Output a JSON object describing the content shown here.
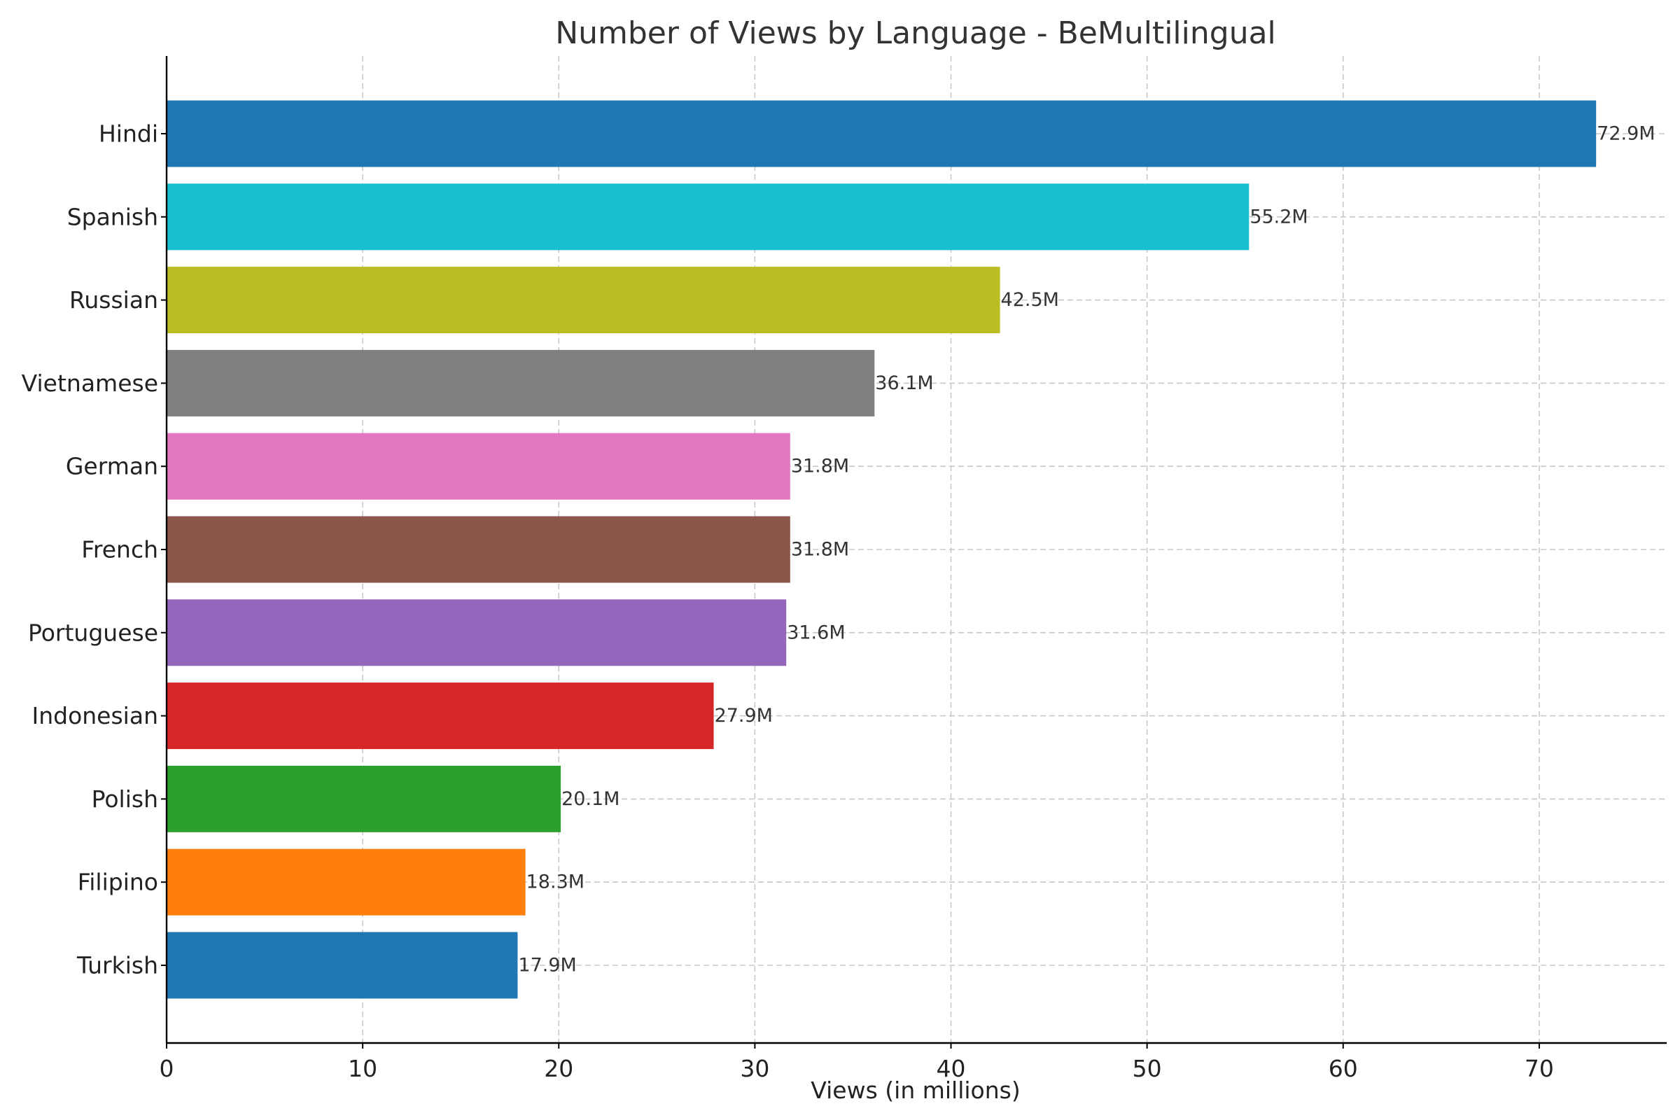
{
  "chart_data": {
    "type": "bar",
    "orientation": "horizontal",
    "title": "Number of Views by Language - BeMultilingual",
    "xlabel": "Views (in millions)",
    "ylabel": "",
    "xlim": [
      0,
      76.5
    ],
    "xticks": [
      0,
      10,
      20,
      30,
      40,
      50,
      60,
      70
    ],
    "grid": true,
    "categories": [
      "Hindi",
      "Spanish",
      "Russian",
      "Vietnamese",
      "German",
      "French",
      "Portuguese",
      "Indonesian",
      "Polish",
      "Filipino",
      "Turkish"
    ],
    "values": [
      72.9,
      55.2,
      42.5,
      36.1,
      31.8,
      31.8,
      31.6,
      27.9,
      20.1,
      18.3,
      17.9
    ],
    "value_labels": [
      "72.9M",
      "55.2M",
      "42.5M",
      "36.1M",
      "31.8M",
      "31.8M",
      "31.6M",
      "27.9M",
      "20.1M",
      "18.3M",
      "17.9M"
    ],
    "colors": [
      "#1f77b4",
      "#17becf",
      "#bcbd22",
      "#7f7f7f",
      "#e377c2",
      "#8c564b",
      "#9467bd",
      "#d62728",
      "#2ca02c",
      "#ff7f0e",
      "#1f77b4"
    ]
  }
}
